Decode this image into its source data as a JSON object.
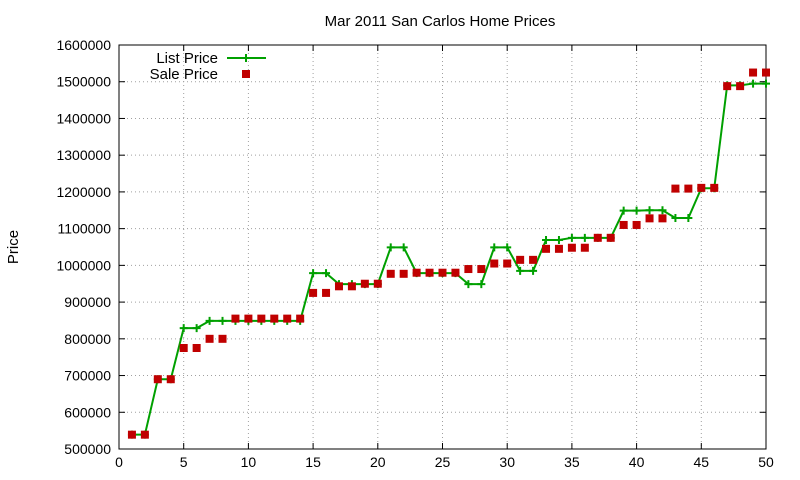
{
  "chart_data": {
    "type": "line",
    "title": "Mar 2011 San Carlos Home Prices",
    "xlabel": "",
    "ylabel": "Price",
    "xlim": [
      0,
      50
    ],
    "ylim": [
      500000,
      1600000
    ],
    "x_ticks": [
      "0",
      "5",
      "10",
      "15",
      "20",
      "25",
      "30",
      "35",
      "40",
      "45",
      "50"
    ],
    "y_ticks": [
      "500000",
      "600000",
      "700000",
      "800000",
      "900000",
      "1000000",
      "1100000",
      "1200000",
      "1300000",
      "1400000",
      "1500000",
      "1600000"
    ],
    "grid": true,
    "legend_position": "top-left",
    "series": [
      {
        "name": "List Price",
        "style": "line-plus",
        "color": "#00a000",
        "x": [
          1,
          2,
          3,
          4,
          5,
          6,
          7,
          8,
          9,
          10,
          11,
          12,
          13,
          14,
          15,
          16,
          17,
          18,
          19,
          20,
          21,
          22,
          23,
          24,
          25,
          26,
          27,
          28,
          29,
          30,
          31,
          32,
          33,
          34,
          35,
          36,
          37,
          38,
          39,
          40,
          41,
          42,
          43,
          44,
          45,
          46,
          47,
          48,
          49,
          50
        ],
        "values": [
          539000,
          539000,
          690000,
          690000,
          829000,
          829000,
          849000,
          849000,
          849000,
          849000,
          849000,
          849000,
          849000,
          849000,
          979000,
          979000,
          949000,
          949000,
          949000,
          949000,
          1049000,
          1049000,
          979000,
          979000,
          979000,
          979000,
          949000,
          949000,
          1049000,
          1049000,
          985000,
          985000,
          1069000,
          1069000,
          1075000,
          1075000,
          1075000,
          1075000,
          1149000,
          1149000,
          1150000,
          1150000,
          1129000,
          1129000,
          1210000,
          1210000,
          1490000,
          1490000,
          1495000,
          1495000
        ]
      },
      {
        "name": "Sale Price",
        "style": "square-points",
        "color": "#c00000",
        "x": [
          1,
          2,
          3,
          4,
          5,
          6,
          7,
          8,
          9,
          10,
          11,
          12,
          13,
          14,
          15,
          16,
          17,
          18,
          19,
          20,
          21,
          22,
          23,
          24,
          25,
          26,
          27,
          28,
          29,
          30,
          31,
          32,
          33,
          34,
          35,
          36,
          37,
          38,
          39,
          40,
          41,
          42,
          43,
          44,
          45,
          46,
          47,
          48,
          49,
          50
        ],
        "values": [
          539000,
          539000,
          690000,
          690000,
          775000,
          775000,
          800000,
          800000,
          855000,
          855000,
          855000,
          855000,
          855000,
          855000,
          925000,
          925000,
          943000,
          943000,
          950000,
          950000,
          977000,
          977000,
          980000,
          980000,
          980000,
          980000,
          990000,
          990000,
          1005000,
          1005000,
          1015000,
          1015000,
          1045000,
          1045000,
          1048000,
          1048000,
          1075000,
          1075000,
          1110000,
          1110000,
          1128000,
          1128000,
          1209000,
          1209000,
          1211000,
          1211000,
          1488000,
          1488000,
          1525000,
          1525000
        ]
      }
    ]
  }
}
